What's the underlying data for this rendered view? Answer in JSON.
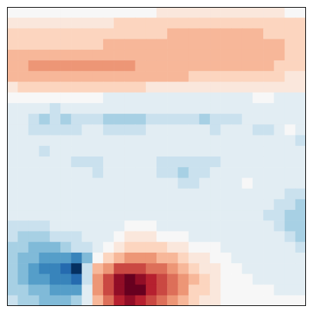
{
  "chart_data": {
    "type": "heatmap",
    "tick_labels": false,
    "color_range": [
      -9,
      9
    ],
    "cells": [
      [
        0,
        0,
        0,
        0,
        0,
        0,
        0,
        0,
        0,
        0,
        0,
        0,
        0,
        0,
        1,
        1,
        1,
        1,
        1,
        1,
        1,
        1,
        1,
        1,
        1,
        1,
        0,
        0
      ],
      [
        1,
        1,
        1,
        1,
        1,
        1,
        1,
        1,
        1,
        1,
        2,
        2,
        2,
        2,
        2,
        2,
        2,
        2,
        2,
        2,
        2,
        2,
        2,
        2,
        2,
        2,
        2,
        2
      ],
      [
        2,
        2,
        2,
        2,
        2,
        2,
        2,
        2,
        2,
        2,
        2,
        2,
        2,
        2,
        2,
        3,
        3,
        3,
        3,
        3,
        3,
        3,
        3,
        3,
        2,
        2,
        2,
        2
      ],
      [
        2,
        2,
        2,
        2,
        2,
        2,
        2,
        2,
        2,
        3,
        3,
        3,
        3,
        3,
        3,
        3,
        3,
        3,
        3,
        3,
        3,
        3,
        3,
        3,
        3,
        3,
        2,
        2
      ],
      [
        3,
        3,
        3,
        3,
        3,
        3,
        3,
        3,
        3,
        3,
        3,
        3,
        3,
        3,
        3,
        3,
        3,
        3,
        3,
        3,
        3,
        3,
        3,
        3,
        3,
        3,
        2,
        2
      ],
      [
        3,
        3,
        4,
        4,
        4,
        4,
        4,
        4,
        4,
        4,
        4,
        4,
        3,
        3,
        3,
        3,
        3,
        3,
        3,
        3,
        3,
        3,
        3,
        3,
        3,
        2,
        2,
        2
      ],
      [
        3,
        3,
        3,
        3,
        3,
        3,
        3,
        3,
        3,
        3,
        3,
        3,
        3,
        3,
        3,
        3,
        3,
        2,
        2,
        2,
        2,
        2,
        2,
        2,
        2,
        2,
        1,
        1
      ],
      [
        1,
        2,
        2,
        2,
        2,
        2,
        2,
        2,
        2,
        2,
        2,
        2,
        2,
        1,
        1,
        1,
        1,
        1,
        1,
        1,
        1,
        1,
        1,
        1,
        1,
        1,
        1,
        1
      ],
      [
        0,
        0,
        0,
        0,
        0,
        0,
        0,
        0,
        0,
        -1,
        -1,
        -1,
        -1,
        -1,
        -1,
        -1,
        -1,
        -1,
        -1,
        -1,
        -1,
        -1,
        -1,
        0,
        0,
        -1,
        -1,
        -1
      ],
      [
        -1,
        -1,
        -1,
        -1,
        -2,
        -1,
        -1,
        -1,
        -1,
        -1,
        -1,
        -1,
        -1,
        -1,
        -1,
        -1,
        -1,
        -1,
        -1,
        -1,
        -1,
        -1,
        -1,
        -1,
        -1,
        -1,
        -1,
        -1
      ],
      [
        -1,
        -1,
        -2,
        -3,
        -2,
        -3,
        -2,
        -2,
        -2,
        -3,
        -3,
        -3,
        -3,
        -2,
        -2,
        -2,
        -2,
        -2,
        -3,
        -2,
        -2,
        -2,
        -1,
        -1,
        -1,
        -1,
        -1,
        -1
      ],
      [
        -1,
        -1,
        -2,
        -2,
        -2,
        -2,
        -2,
        -1,
        -1,
        -2,
        -2,
        -2,
        -2,
        -1,
        -1,
        -1,
        -1,
        -1,
        -1,
        -2,
        -1,
        -1,
        -1,
        -2,
        -2,
        -1,
        0,
        -1
      ],
      [
        -1,
        -1,
        -1,
        -1,
        -1,
        -1,
        -1,
        -1,
        -1,
        -1,
        -1,
        -1,
        -1,
        -1,
        -1,
        -1,
        -1,
        -1,
        -1,
        -1,
        -1,
        -1,
        -1,
        -1,
        -1,
        -1,
        -1,
        -2
      ],
      [
        -1,
        -1,
        -1,
        -2,
        -1,
        -1,
        -1,
        -1,
        -1,
        -1,
        -1,
        -1,
        -1,
        -1,
        -1,
        -1,
        -1,
        -1,
        -1,
        -1,
        -1,
        -1,
        -1,
        -1,
        -1,
        -1,
        -1,
        -1
      ],
      [
        -1,
        -1,
        -1,
        -1,
        -1,
        -1,
        -2,
        -2,
        -2,
        -1,
        -1,
        -1,
        -1,
        -1,
        -2,
        -2,
        -2,
        -2,
        -2,
        -2,
        -1,
        -1,
        -1,
        -1,
        -1,
        -1,
        -1,
        -1
      ],
      [
        -1,
        -1,
        -1,
        -1,
        -1,
        -1,
        -1,
        -1,
        -2,
        -1,
        -1,
        -1,
        -1,
        -1,
        -2,
        -2,
        -3,
        -2,
        -2,
        -1,
        -1,
        -1,
        -1,
        -1,
        -1,
        -1,
        -1,
        -1
      ],
      [
        -1,
        -1,
        -1,
        -1,
        -1,
        -1,
        -1,
        -1,
        -1,
        -1,
        -1,
        -1,
        -1,
        -1,
        -1,
        -1,
        -2,
        -2,
        -1,
        -1,
        -1,
        -1,
        0,
        -1,
        -1,
        -1,
        -1,
        -1
      ],
      [
        -1,
        -1,
        -1,
        -1,
        -1,
        -1,
        -1,
        -1,
        -1,
        -1,
        -1,
        -1,
        -1,
        -1,
        -1,
        -1,
        -1,
        -1,
        -1,
        -1,
        -1,
        -1,
        -1,
        -1,
        -1,
        -1,
        -2,
        -2
      ],
      [
        -1,
        -1,
        -1,
        -1,
        -1,
        -1,
        -1,
        -1,
        -1,
        -1,
        -1,
        -1,
        -1,
        -1,
        -1,
        -1,
        -1,
        -1,
        -1,
        -1,
        -1,
        -1,
        -1,
        -1,
        -1,
        -2,
        -2,
        -3
      ],
      [
        -1,
        -1,
        -1,
        -1,
        -1,
        -1,
        -1,
        -1,
        -1,
        -1,
        -1,
        -1,
        -1,
        -1,
        -1,
        -1,
        -1,
        -1,
        -1,
        -1,
        -1,
        -1,
        -1,
        -1,
        -2,
        -2,
        -3,
        -3
      ],
      [
        -2,
        -2,
        -2,
        -2,
        -1,
        -1,
        -1,
        -1,
        -1,
        -1,
        -1,
        0,
        0,
        0,
        -1,
        -1,
        -1,
        -1,
        -1,
        -1,
        -1,
        -1,
        -1,
        -1,
        -1,
        -2,
        -3,
        -3
      ],
      [
        -2,
        -3,
        -3,
        -3,
        -2,
        -2,
        -2,
        -1,
        -1,
        -1,
        0,
        1,
        1,
        1,
        0,
        0,
        0,
        -1,
        -1,
        -1,
        -1,
        -1,
        -1,
        -1,
        -1,
        -1,
        -2,
        -3
      ],
      [
        -3,
        -3,
        -4,
        -4,
        -4,
        -3,
        -2,
        -2,
        -1,
        0,
        1,
        2,
        2,
        2,
        2,
        1,
        1,
        0,
        0,
        0,
        -1,
        -1,
        -1,
        -1,
        -1,
        -1,
        -1,
        -2
      ],
      [
        -3,
        -4,
        -4,
        -5,
        -5,
        -5,
        -6,
        -4,
        0,
        2,
        3,
        4,
        4,
        4,
        3,
        3,
        2,
        1,
        1,
        0,
        0,
        -1,
        -1,
        -1,
        -1,
        -1,
        -1,
        -1
      ],
      [
        -3,
        -4,
        -5,
        -6,
        -6,
        -7,
        -9,
        -2,
        3,
        4,
        6,
        6,
        6,
        5,
        5,
        4,
        3,
        2,
        1,
        1,
        0,
        0,
        -1,
        -1,
        -1,
        -1,
        -1,
        -1
      ],
      [
        -3,
        -4,
        -5,
        -5,
        -6,
        -6,
        -7,
        -2,
        4,
        6,
        8,
        9,
        8,
        7,
        6,
        5,
        4,
        3,
        2,
        1,
        0,
        0,
        0,
        -1,
        -1,
        -1,
        -1,
        -1
      ],
      [
        -3,
        -3,
        -4,
        -4,
        -5,
        -5,
        -5,
        -1,
        4,
        6,
        8,
        9,
        9,
        7,
        6,
        5,
        4,
        2,
        2,
        1,
        0,
        0,
        0,
        0,
        0,
        -1,
        -1,
        -1
      ],
      [
        -2,
        -3,
        -3,
        -4,
        -4,
        -4,
        -3,
        -1,
        3,
        5,
        7,
        8,
        7,
        6,
        5,
        4,
        3,
        2,
        1,
        1,
        0,
        0,
        0,
        0,
        0,
        0,
        0,
        0
      ]
    ]
  }
}
